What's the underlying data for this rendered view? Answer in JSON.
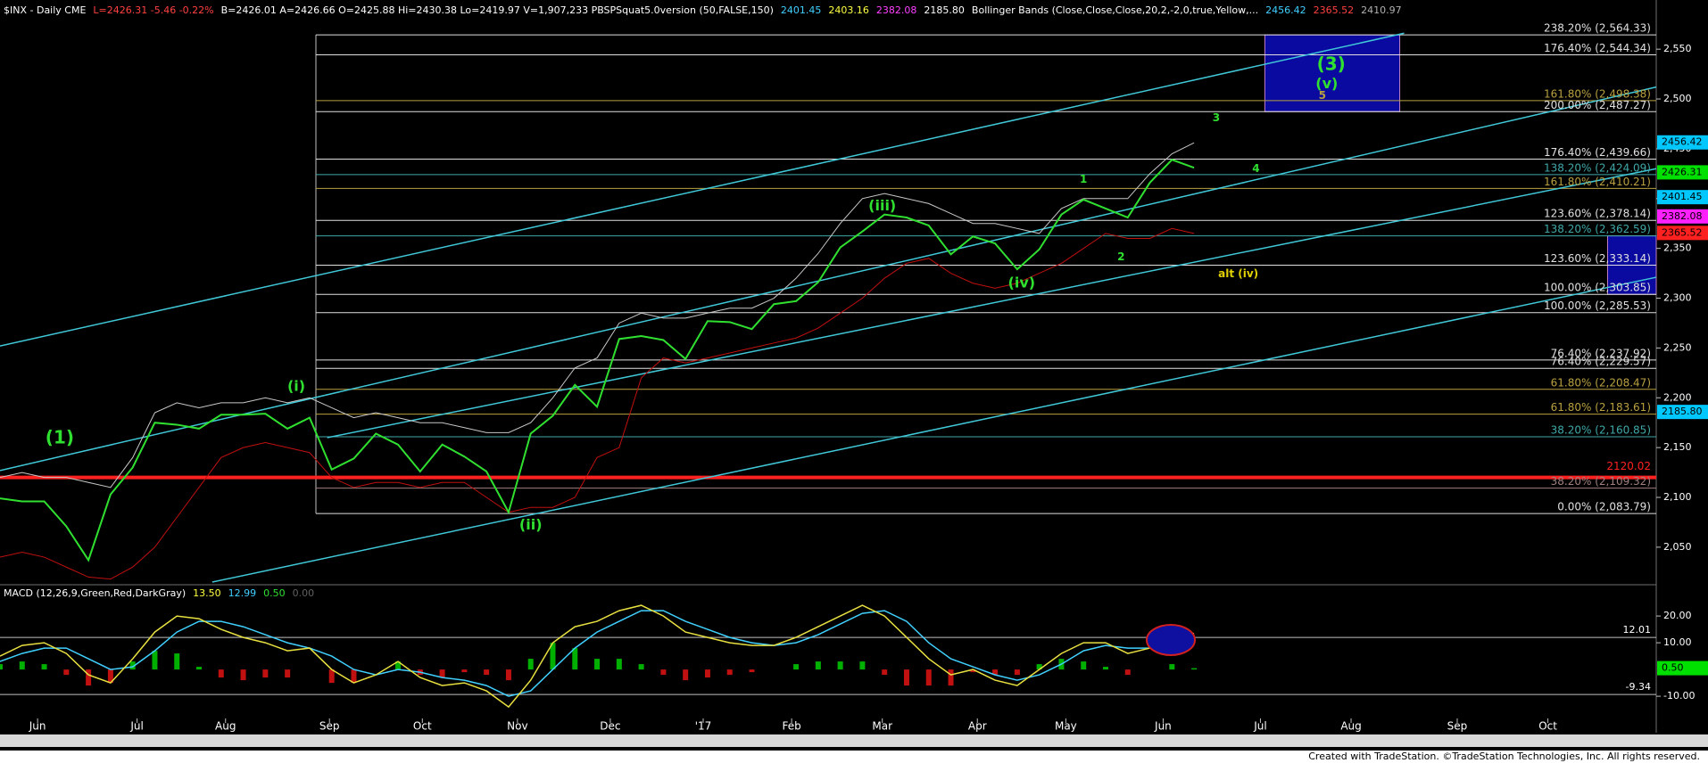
{
  "chart_data": [
    {
      "type": "line",
      "header": [
        {
          "text": "$INX - Daily CME",
          "color": "#ffffff"
        },
        {
          "text": "L=2426.31 -5.46 -0.22%",
          "color": "#ff4040"
        },
        {
          "text": "B=2426.01 A=2426.66 O=2425.88 Hi=2430.38 Lo=2419.97 V=1,907,233 PBSPSquat5.0version (50,FALSE,150)",
          "color": "#ffffff"
        },
        {
          "text": "2401.45",
          "color": "#40d0ff"
        },
        {
          "text": "2403.16",
          "color": "#ffff40"
        },
        {
          "text": "2382.08",
          "color": "#ff40ff"
        },
        {
          "text": "2185.80",
          "color": "#ffffff"
        },
        {
          "text": "Bollinger Bands (Close,Close,Close,20,2,-2,0,true,Yellow,...",
          "color": "#ffffff"
        },
        {
          "text": "2456.42",
          "color": "#40d0ff"
        },
        {
          "text": "2365.52",
          "color": "#ff4040"
        },
        {
          "text": "2410.97",
          "color": "#b0b0b0"
        }
      ],
      "x": [
        0,
        1,
        2,
        3,
        4,
        5,
        6,
        7,
        8,
        9,
        10,
        11,
        12,
        13,
        14,
        15,
        16,
        17,
        18,
        19,
        20,
        21,
        22,
        23,
        24,
        25,
        26,
        27,
        28,
        29,
        30,
        31,
        32,
        33,
        34,
        35,
        36,
        37,
        38,
        39,
        40,
        41,
        42,
        43,
        44,
        45,
        46,
        47,
        48,
        49,
        50,
        51,
        52,
        53,
        54
      ],
      "xlim": [
        0,
        74.9
      ],
      "xticks": [
        {
          "value": 1.7,
          "label": "Jun"
        },
        {
          "value": 6.2,
          "label": "Jul"
        },
        {
          "value": 10.2,
          "label": "Aug"
        },
        {
          "value": 14.9,
          "label": "Sep"
        },
        {
          "value": 19.1,
          "label": "Oct"
        },
        {
          "value": 23.4,
          "label": "Nov"
        },
        {
          "value": 27.6,
          "label": "Dec"
        },
        {
          "value": 31.8,
          "label": "'17"
        },
        {
          "value": 35.8,
          "label": "Feb"
        },
        {
          "value": 39.9,
          "label": "Mar"
        },
        {
          "value": 44.2,
          "label": "Apr"
        },
        {
          "value": 48.2,
          "label": "May"
        },
        {
          "value": 52.6,
          "label": "Jun"
        },
        {
          "value": 57,
          "label": "Jul"
        },
        {
          "value": 61.1,
          "label": "Aug"
        },
        {
          "value": 65.9,
          "label": "Sep"
        },
        {
          "value": 70,
          "label": "Oct"
        }
      ],
      "ylim": [
        2015,
        2594
      ],
      "yticks": [
        {
          "value": 2050,
          "label": "2,050"
        },
        {
          "value": 2100,
          "label": "2,100"
        },
        {
          "value": 2150,
          "label": "2,150"
        },
        {
          "value": 2200,
          "label": "2,200"
        },
        {
          "value": 2250,
          "label": "2,250"
        },
        {
          "value": 2300,
          "label": "2,300"
        },
        {
          "value": 2350,
          "label": "2,350"
        },
        {
          "value": 2400,
          "label": "2,400"
        },
        {
          "value": 2450,
          "label": "2,450"
        },
        {
          "value": 2500,
          "label": "2,500"
        },
        {
          "value": 2550,
          "label": "2,550"
        }
      ],
      "series": [
        {
          "color": "#c8c8c8",
          "width": 1,
          "values": [
            2120,
            2125,
            2120,
            2120,
            2115,
            2110,
            2140,
            2185,
            2195,
            2190,
            2195,
            2195,
            2200,
            2195,
            2200,
            2190,
            2180,
            2185,
            2180,
            2175,
            2175,
            2170,
            2165,
            2165,
            2175,
            2200,
            2230,
            2240,
            2275,
            2285,
            2280,
            2280,
            2285,
            2290,
            2290,
            2300,
            2320,
            2345,
            2375,
            2400,
            2405,
            2400,
            2395,
            2385,
            2375,
            2375,
            2370,
            2365,
            2390,
            2400,
            2400,
            2400,
            2425,
            2445,
            2456
          ]
        },
        {
          "color": "#c01010",
          "width": 1,
          "values": [
            2040,
            2045,
            2040,
            2030,
            2020,
            2018,
            2030,
            2050,
            2080,
            2110,
            2140,
            2150,
            2155,
            2150,
            2145,
            2120,
            2110,
            2115,
            2115,
            2110,
            2115,
            2115,
            2100,
            2085,
            2090,
            2090,
            2100,
            2140,
            2150,
            2220,
            2240,
            2235,
            2240,
            2245,
            2250,
            2255,
            2260,
            2270,
            2285,
            2300,
            2320,
            2335,
            2340,
            2325,
            2315,
            2310,
            2315,
            2325,
            2335,
            2350,
            2365,
            2360,
            2360,
            2370,
            2365
          ]
        },
        {
          "color": "#30e030",
          "width": 2,
          "values": [
            2099,
            2096,
            2096,
            2071,
            2037,
            2103,
            2130,
            2175,
            2173,
            2169,
            2183,
            2183,
            2184,
            2169,
            2180,
            2128,
            2139,
            2164,
            2153,
            2126,
            2153,
            2141,
            2126,
            2085,
            2164,
            2182,
            2213,
            2191,
            2259,
            2262,
            2258,
            2239,
            2277,
            2276,
            2269,
            2294,
            2297,
            2316,
            2351,
            2367,
            2384,
            2381,
            2373,
            2344,
            2362,
            2355,
            2329,
            2349,
            2384,
            2399,
            2390,
            2381,
            2416,
            2439,
            2431
          ]
        }
      ],
      "fib_levels": [
        {
          "value": 2564.33,
          "label": "238.20% (2,564.33)",
          "color": "#e0e0e0"
        },
        {
          "value": 2544.34,
          "label": "176.40% (2,544.34)",
          "color": "#e0e0e0"
        },
        {
          "value": 2498.38,
          "label": "161.80% (2,498.38)",
          "color": "#b8a040"
        },
        {
          "value": 2487.27,
          "label": "200.00% (2,487.27)",
          "color": "#e0e0e0"
        },
        {
          "value": 2439.66,
          "label": "176.40% (2,439.66)",
          "color": "#e0e0e0"
        },
        {
          "value": 2424.09,
          "label": "138.20% (2,424.09)",
          "color": "#40a8a8"
        },
        {
          "value": 2410.21,
          "label": "161.80% (2,410.21)",
          "color": "#b8a040"
        },
        {
          "value": 2378.14,
          "label": "123.60% (2,378.14)",
          "color": "#e0e0e0"
        },
        {
          "value": 2362.59,
          "label": "138.20% (2,362.59)",
          "color": "#40a8a8"
        },
        {
          "value": 2333.14,
          "label": "123.60% (2,333.14)",
          "color": "#e0e0e0"
        },
        {
          "value": 2303.85,
          "label": "100.00% (2,303.85)",
          "color": "#e0e0e0"
        },
        {
          "value": 2285.53,
          "label": "100.00% (2,285.53)",
          "color": "#e0e0e0"
        },
        {
          "value": 2237.92,
          "label": "76.40% (2,237.92)",
          "color": "#e0e0e0"
        },
        {
          "value": 2229.57,
          "label": "76.40% (2,229.57)",
          "color": "#e0e0e0"
        },
        {
          "value": 2208.47,
          "label": "61.80% (2,208.47)",
          "color": "#b8a040"
        },
        {
          "value": 2183.61,
          "label": "61.80% (2,183.61)",
          "color": "#b8a040"
        },
        {
          "value": 2160.85,
          "label": "38.20% (2,160.85)",
          "color": "#40a8a8"
        },
        {
          "value": 2109.32,
          "label": "38.20% (2,109.32)",
          "color": "#a08080"
        },
        {
          "value": 2083.79,
          "label": "0.00% (2,083.79)",
          "color": "#e0e0e0"
        }
      ],
      "support_line": {
        "value": 2120.02,
        "label": "2120.02",
        "color": "#ff2020"
      },
      "axis_markers": [
        {
          "value": 2456.42,
          "label": "2456.42",
          "color": "#00c8ff"
        },
        {
          "value": 2426.31,
          "label": "2426.31",
          "color": "#00e000"
        },
        {
          "value": 2401.45,
          "label": "2401.45",
          "color": "#00c8ff"
        },
        {
          "value": 2382.08,
          "label": "2382.08",
          "color": "#ff20ff"
        },
        {
          "value": 2365.52,
          "label": "2365.52",
          "color": "#ff2020"
        },
        {
          "value": 2185.8,
          "label": "2185.80",
          "color": "#00c8ff"
        }
      ],
      "target_boxes": [
        {
          "x": [
            57.2,
            63.3
          ],
          "y": [
            2487.27,
            2564.33
          ],
          "color": "#0a0aa0"
        },
        {
          "x": [
            72.7,
            74.9
          ],
          "y": [
            2303.85,
            2362.59
          ],
          "color": "#0a0aa0"
        }
      ],
      "trendlines": [
        {
          "x": [
            0,
            63.5
          ],
          "y": [
            2252,
            2566
          ],
          "color": "#40c8d8"
        },
        {
          "x": [
            0,
            74.9
          ],
          "y": [
            2127,
            2512
          ],
          "color": "#40c8d8"
        },
        {
          "x": [
            14.8,
            74.9
          ],
          "y": [
            2160,
            2430
          ],
          "color": "#40c8d8"
        },
        {
          "x": [
            9.6,
            74.9
          ],
          "y": [
            2015,
            2321
          ],
          "color": "#40c8d8"
        }
      ],
      "annotations": [
        {
          "text": "(1)",
          "x": 2.7,
          "y": 2159,
          "color": "#30e030",
          "size": 20
        },
        {
          "text": "(i)",
          "x": 13.4,
          "y": 2211,
          "color": "#30e030",
          "size": 16
        },
        {
          "text": "(ii)",
          "x": 24,
          "y": 2072,
          "color": "#30e030",
          "size": 16
        },
        {
          "text": "(iii)",
          "x": 39.9,
          "y": 2392,
          "color": "#30e030",
          "size": 16
        },
        {
          "text": "(iv)",
          "x": 46.2,
          "y": 2315,
          "color": "#30e030",
          "size": 16
        },
        {
          "text": "1",
          "x": 49,
          "y": 2419,
          "color": "#30e030",
          "size": 12
        },
        {
          "text": "2",
          "x": 50.7,
          "y": 2341,
          "color": "#30e030",
          "size": 12
        },
        {
          "text": "3",
          "x": 55,
          "y": 2481,
          "color": "#30e030",
          "size": 12
        },
        {
          "text": "4",
          "x": 56.8,
          "y": 2430,
          "color": "#30e030",
          "size": 12
        },
        {
          "text": "(3)",
          "x": 60.2,
          "y": 2534,
          "color": "#30e030",
          "size": 20
        },
        {
          "text": "(v)",
          "x": 60,
          "y": 2515,
          "color": "#30e030",
          "size": 16
        },
        {
          "text": "5",
          "x": 59.8,
          "y": 2503,
          "color": "#b8a040",
          "size": 12
        },
        {
          "text": "alt (iv)",
          "x": 56,
          "y": 2324,
          "color": "#e0d000",
          "size": 12
        }
      ]
    },
    {
      "type": "line",
      "header": [
        {
          "text": "MACD (12,26,9,Green,Red,DarkGray)",
          "color": "#ffffff"
        },
        {
          "text": "13.50",
          "color": "#ffff40"
        },
        {
          "text": "12.99",
          "color": "#40d0ff"
        },
        {
          "text": "0.50",
          "color": "#30e030"
        },
        {
          "text": "0.00",
          "color": "#606060"
        }
      ],
      "ylim": [
        -18.3,
        30.7
      ],
      "yticks": [
        {
          "value": 20,
          "label": "20.00"
        },
        {
          "value": 10,
          "label": "10.00"
        },
        {
          "value": -10,
          "label": "-10.00"
        }
      ],
      "series": [
        {
          "style": "histogram",
          "color": "#00b000",
          "negative_color": "#c01010",
          "values": [
            2,
            3,
            2,
            -2,
            -6,
            -5,
            3,
            7,
            6,
            1,
            -3,
            -4,
            -3,
            -3,
            0,
            -5,
            -5,
            0,
            3,
            -2,
            -3,
            -1,
            -2,
            -4,
            4,
            10,
            8,
            4,
            4,
            2,
            -2,
            -4,
            -3,
            -2,
            -1,
            0,
            2,
            3,
            3,
            3,
            -2,
            -6,
            -6,
            -6,
            -1,
            -2,
            -2,
            2,
            4,
            3,
            1,
            -2,
            0,
            2,
            0.5
          ]
        },
        {
          "style": "line",
          "color": "#40d0ff",
          "values": [
            3,
            6,
            8,
            8,
            4,
            0,
            1,
            7,
            14,
            18,
            18,
            16,
            13,
            10,
            8,
            5,
            0,
            -2,
            0,
            -1,
            -3,
            -4,
            -6,
            -10,
            -8,
            0,
            8,
            14,
            18,
            22,
            22,
            18,
            15,
            12,
            10,
            9,
            10,
            13,
            17,
            21,
            22,
            18,
            10,
            4,
            1,
            -2,
            -4,
            -2,
            2,
            7,
            9,
            8,
            8,
            11,
            12.99
          ]
        },
        {
          "style": "line",
          "color": "#e8e040",
          "values": [
            5,
            9,
            10,
            6,
            -2,
            -5,
            4,
            14,
            20,
            19,
            15,
            12,
            10,
            7,
            8,
            0,
            -5,
            -2,
            3,
            -3,
            -6,
            -5,
            -8,
            -14,
            -4,
            10,
            16,
            18,
            22,
            24,
            20,
            14,
            12,
            10,
            9,
            9,
            12,
            16,
            20,
            24,
            20,
            12,
            4,
            -2,
            0,
            -4,
            -6,
            0,
            6,
            10,
            10,
            6,
            8,
            13,
            13.5
          ]
        }
      ],
      "levels": [
        {
          "value": 12.01,
          "label": "12.01"
        },
        {
          "value": -9.34,
          "label": "-9.34"
        }
      ],
      "axis_markers": [
        {
          "value": 0.5,
          "label": "0.50",
          "color": "#00e000"
        }
      ]
    }
  ],
  "footer": "Created with TradeStation. ©TradeStation Technologies, Inc. All rights reserved."
}
